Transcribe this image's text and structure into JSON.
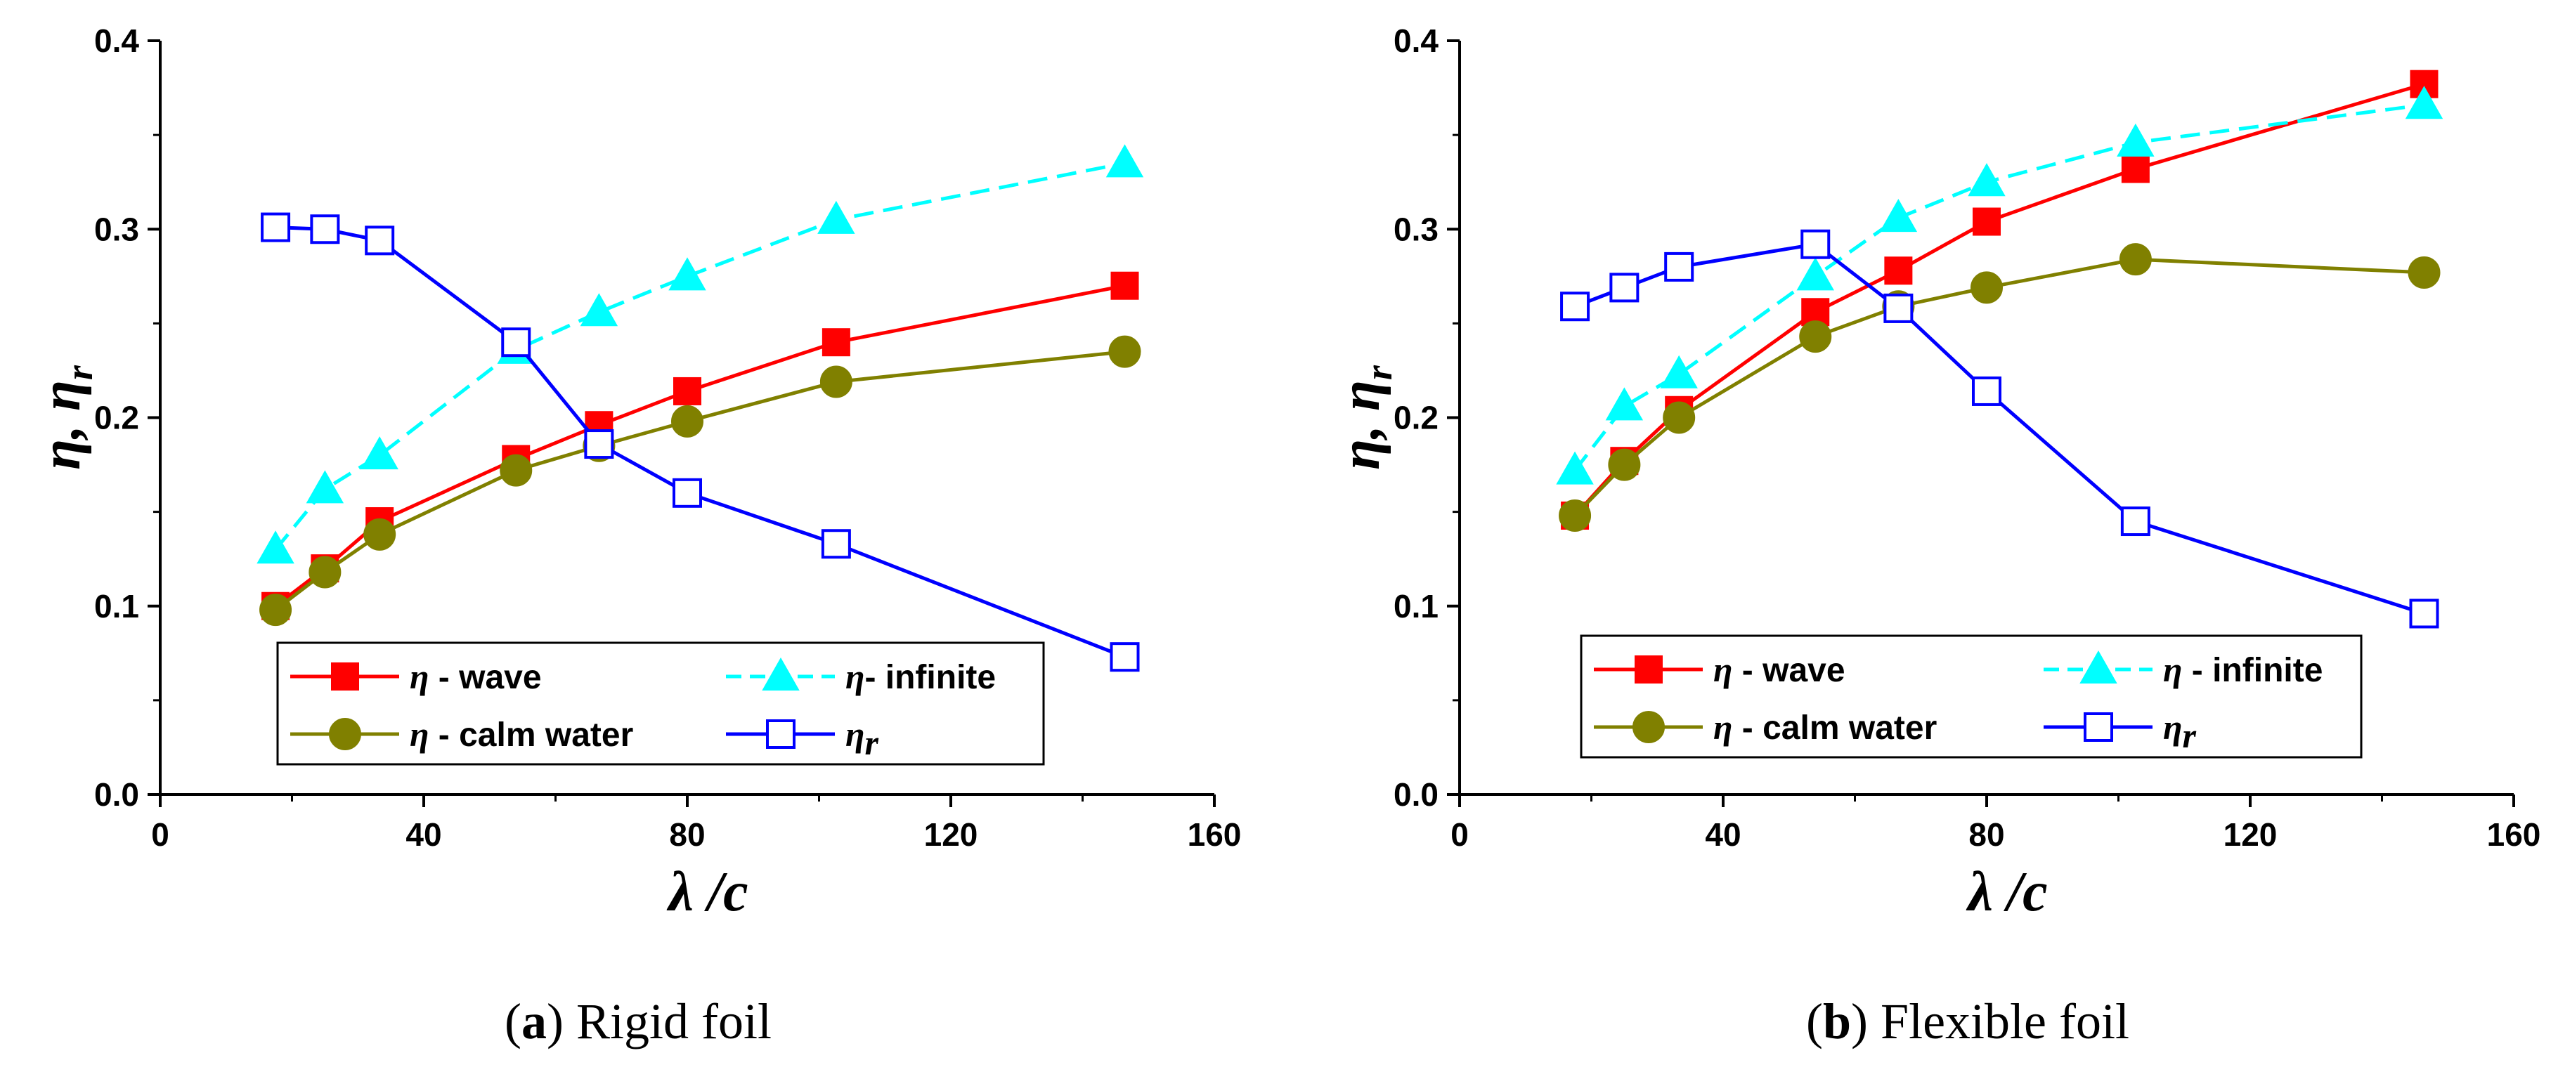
{
  "chart_data": [
    {
      "type": "line",
      "title": "",
      "caption": {
        "open": "(",
        "letter": "a",
        "close": ")",
        "text": " Rigid foil"
      },
      "xlabel": {
        "main": "λ",
        "rest": " /c"
      },
      "ylabel": {
        "eta": "η",
        "sep": ", ",
        "eta2": "η",
        "sub": "r"
      },
      "xlim": [
        0,
        160
      ],
      "ylim": [
        0.0,
        0.4
      ],
      "xticks": [
        "0",
        "40",
        "80",
        "120",
        "160"
      ],
      "yticks": [
        "0.0",
        "0.1",
        "0.2",
        "0.3",
        "0.4"
      ],
      "legend_position": "bottom-center",
      "series": [
        {
          "name": "η - wave",
          "sym": "η",
          "label": " - wave",
          "color": "#ff0000",
          "marker": "square-filled",
          "dash": "solid",
          "x": [
            17.5,
            25,
            33.3,
            54,
            66.6,
            80,
            102.6,
            146.4
          ],
          "y": [
            0.1,
            0.12,
            0.145,
            0.178,
            0.196,
            0.214,
            0.24,
            0.27
          ]
        },
        {
          "name": "η - calm water",
          "sym": "η",
          "label": " - calm water",
          "color": "#808000",
          "marker": "circle-filled",
          "dash": "solid",
          "x": [
            17.5,
            25,
            33.3,
            54,
            66.6,
            80,
            102.6,
            146.4
          ],
          "y": [
            0.098,
            0.118,
            0.138,
            0.172,
            0.185,
            0.198,
            0.219,
            0.235
          ]
        },
        {
          "name": "η- infinite",
          "sym": "η",
          "label": "- infinite",
          "color": "#00ffff",
          "marker": "triangle-filled",
          "dash": "dashed",
          "x": [
            17.5,
            25,
            33.3,
            54,
            66.6,
            80,
            102.6,
            146.4
          ],
          "y": [
            0.13,
            0.162,
            0.18,
            0.236,
            0.256,
            0.275,
            0.305,
            0.335
          ]
        },
        {
          "name": "η_r",
          "sym": "η",
          "sub": "r",
          "label": "",
          "color": "#0000ff",
          "marker": "square-open",
          "dash": "solid",
          "x": [
            17.5,
            25,
            33.3,
            54,
            66.6,
            80,
            102.6,
            146.4
          ],
          "y": [
            0.301,
            0.3,
            0.294,
            0.24,
            0.186,
            0.16,
            0.133,
            0.073
          ]
        }
      ]
    },
    {
      "type": "line",
      "title": "",
      "caption": {
        "open": "(",
        "letter": "b",
        "close": ")",
        "text": " Flexible foil"
      },
      "xlabel": {
        "main": "λ",
        "rest": " /c"
      },
      "ylabel": {
        "eta": "η",
        "sep": ", ",
        "eta2": "η",
        "sub": "r"
      },
      "xlim": [
        0,
        160
      ],
      "ylim": [
        0.0,
        0.4
      ],
      "xticks": [
        "0",
        "40",
        "80",
        "120",
        "160"
      ],
      "yticks": [
        "0.0",
        "0.1",
        "0.2",
        "0.3",
        "0.4"
      ],
      "legend_position": "bottom-center",
      "series": [
        {
          "name": "η - wave",
          "sym": "η",
          "label": " - wave",
          "color": "#ff0000",
          "marker": "square-filled",
          "dash": "solid",
          "x": [
            17.5,
            25,
            33.3,
            54,
            66.6,
            80,
            102.6,
            146.4
          ],
          "y": [
            0.148,
            0.177,
            0.204,
            0.256,
            0.278,
            0.304,
            0.332,
            0.377
          ]
        },
        {
          "name": "η - calm water",
          "sym": "η",
          "label": " - calm water",
          "color": "#808000",
          "marker": "circle-filled",
          "dash": "solid",
          "x": [
            17.5,
            25,
            33.3,
            54,
            66.6,
            80,
            102.6,
            146.4
          ],
          "y": [
            0.148,
            0.175,
            0.2,
            0.243,
            0.259,
            0.269,
            0.284,
            0.277
          ]
        },
        {
          "name": "η - infinite",
          "sym": "η",
          "label": " - infinite",
          "color": "#00ffff",
          "marker": "triangle-filled",
          "dash": "dashed",
          "x": [
            17.5,
            25,
            33.3,
            54,
            66.6,
            80,
            102.6,
            146.4
          ],
          "y": [
            0.172,
            0.206,
            0.223,
            0.275,
            0.306,
            0.325,
            0.346,
            0.366
          ]
        },
        {
          "name": "η_r",
          "sym": "η",
          "sub": "r",
          "label": "",
          "color": "#0000ff",
          "marker": "square-open",
          "dash": "solid",
          "x": [
            17.5,
            25,
            33.3,
            54,
            66.6,
            80,
            102.6,
            146.4
          ],
          "y": [
            0.259,
            0.269,
            0.28,
            0.292,
            0.258,
            0.214,
            0.145,
            0.096
          ]
        }
      ]
    }
  ]
}
